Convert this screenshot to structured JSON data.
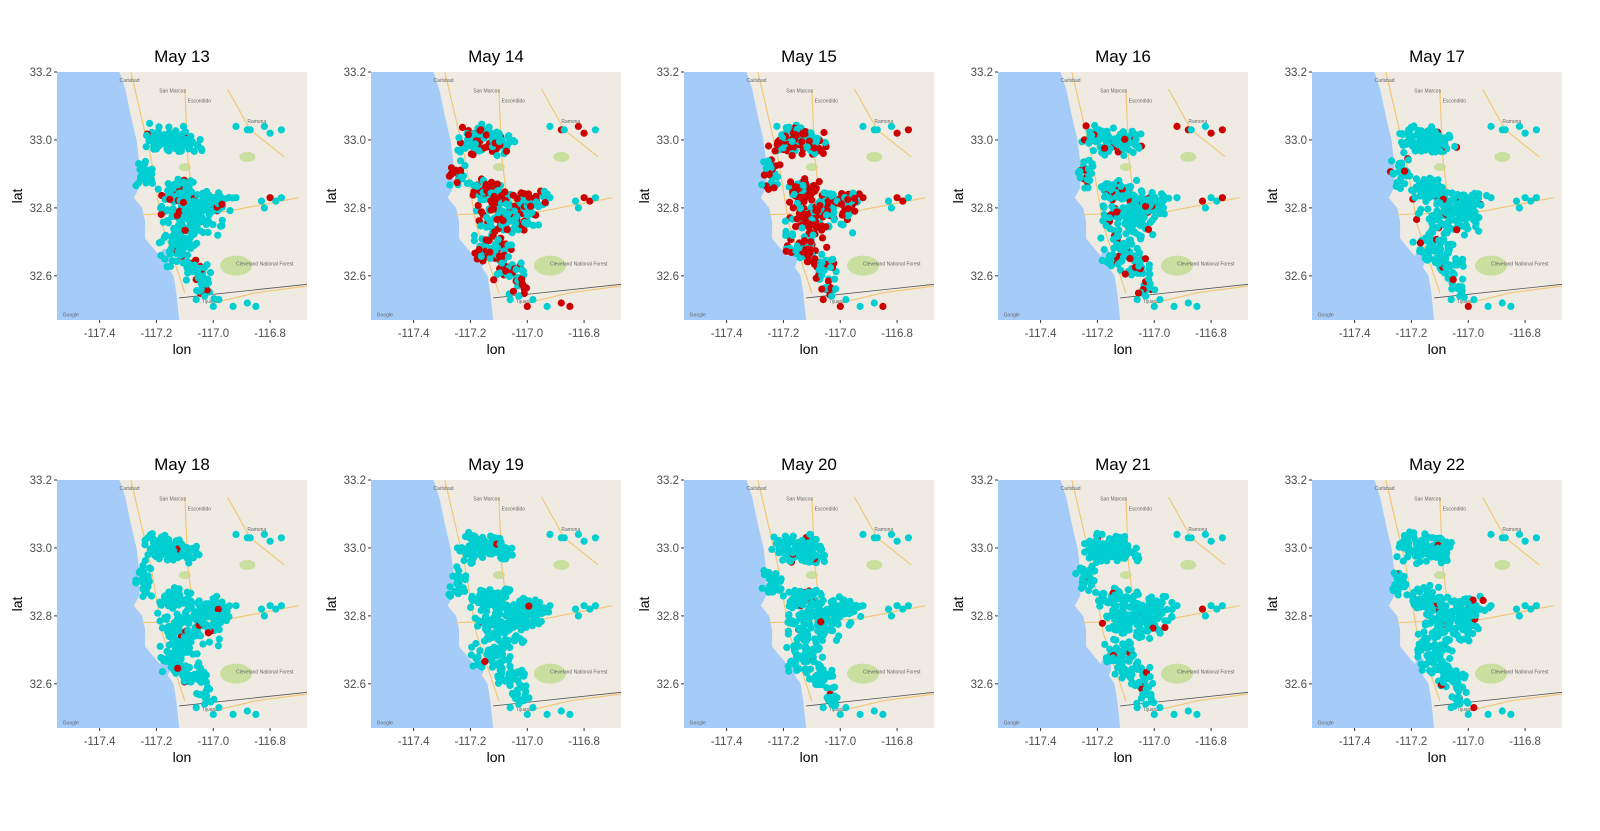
{
  "figure": {
    "x_label": "lon",
    "y_label": "lat",
    "x_ticks": [
      "-117.4",
      "-117.2",
      "-117.0",
      "-116.8"
    ],
    "y_ticks": [
      "33.2",
      "33.0",
      "32.8",
      "32.6"
    ],
    "x_tick_values": [
      -117.4,
      -117.2,
      -117.0,
      -116.8
    ],
    "y_tick_values": [
      33.2,
      33.0,
      32.8,
      32.6
    ],
    "x_range": [
      -117.55,
      -116.67
    ],
    "y_range": [
      32.47,
      33.2
    ],
    "colors": {
      "ocean": "#a5cbf8",
      "land": "#efebe3",
      "park": "#c9df9f",
      "cyan_points": "#00ced1",
      "red_points": "#cc0000"
    },
    "map_labels": [
      "Carlsbad",
      "San Marcos",
      "Escondido",
      "Ramona",
      "Tijuana",
      "Cleveland National Forest",
      "Google"
    ]
  },
  "panels": [
    {
      "title": "May 13",
      "red_share": 0.08
    },
    {
      "title": "May 14",
      "red_share": 0.42
    },
    {
      "title": "May 15",
      "red_share": 0.55
    },
    {
      "title": "May 16",
      "red_share": 0.12
    },
    {
      "title": "May 17",
      "red_share": 0.05
    },
    {
      "title": "May 18",
      "red_share": 0.02
    },
    {
      "title": "May 19",
      "red_share": 0.02
    },
    {
      "title": "May 20",
      "red_share": 0.03
    },
    {
      "title": "May 21",
      "red_share": 0.04
    },
    {
      "title": "May 22",
      "red_share": 0.03
    }
  ]
}
